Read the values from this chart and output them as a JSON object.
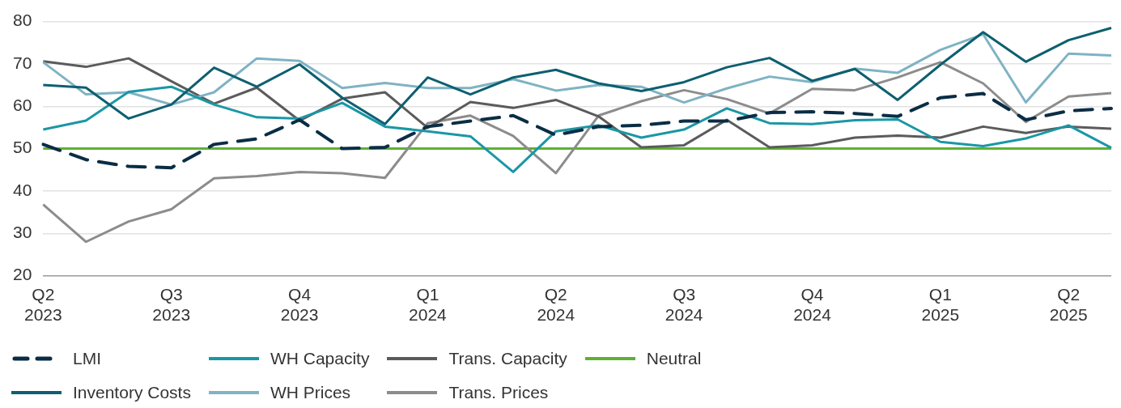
{
  "chart_data": {
    "type": "line",
    "categories": [
      "Q2 2023",
      null,
      null,
      "Q3 2023",
      null,
      null,
      "Q4 2023",
      null,
      null,
      "Q1 2024",
      null,
      null,
      "Q2 2024",
      null,
      null,
      "Q3 2024",
      null,
      null,
      "Q4 2024",
      null,
      null,
      "Q1 2025",
      null,
      null,
      "Q2 2025",
      null
    ],
    "series": [
      {
        "name": "LMI",
        "color": "#0a2d45",
        "line_style": "dashed",
        "values": [
          51,
          47.4,
          45.8,
          45.5,
          51,
          52.3,
          56.8,
          50,
          50.3,
          55.2,
          56.5,
          57.8,
          53.2,
          55.2,
          55.5,
          56.5,
          56.5,
          58.5,
          58.7,
          58.3,
          57.6,
          62,
          63,
          56.8,
          58.9,
          59.5
        ]
      },
      {
        "name": "Inventory Costs",
        "color": "#0d5f70",
        "values": [
          65,
          64.4,
          57.1,
          60.4,
          69.1,
          64.6,
          69.9,
          62,
          55.8,
          66.8,
          62.8,
          66.8,
          68.6,
          65.4,
          63.6,
          65.7,
          69.2,
          71.4,
          66,
          68.8,
          61.5,
          69.8,
          77.5,
          70.5,
          75.6,
          78.5
        ]
      },
      {
        "name": "WH Capacity",
        "color": "#1a97a5",
        "values": [
          54.5,
          56.6,
          63.4,
          64.6,
          60.4,
          57.4,
          57.1,
          60.8,
          55.2,
          54.1,
          52.9,
          44.5,
          54.1,
          55.5,
          52.6,
          54.5,
          59.5,
          56,
          55.8,
          56.7,
          56.9,
          51.6,
          50.6,
          52.4,
          55.5,
          50.2
        ]
      },
      {
        "name": "WH Prices",
        "color": "#7fb3c3",
        "values": [
          70.4,
          62.8,
          63.3,
          60.4,
          63.3,
          71.3,
          70.7,
          64.3,
          65.5,
          64.3,
          64.3,
          66.4,
          63.7,
          65,
          64.6,
          60.9,
          64.2,
          67,
          65.7,
          68.9,
          67.9,
          73.3,
          77,
          60.9,
          72.4,
          72
        ]
      },
      {
        "name": "Trans. Capacity",
        "color": "#5b5b5b",
        "values": [
          70.6,
          69.3,
          71.3,
          65.9,
          60.6,
          64.4,
          56.6,
          61.8,
          63.3,
          54.9,
          61,
          59.6,
          61.5,
          57.6,
          50.3,
          50.8,
          56.8,
          50.3,
          50.8,
          52.6,
          53.1,
          52.6,
          55.2,
          53.7,
          55.2,
          54.7
        ]
      },
      {
        "name": "Trans. Prices",
        "color": "#8c8c8c",
        "values": [
          36.8,
          28,
          32.8,
          35.7,
          43,
          43.5,
          44.5,
          44.2,
          43.1,
          56,
          57.8,
          53,
          44.2,
          57.8,
          61.2,
          63.8,
          61.7,
          58.3,
          64.1,
          63.8,
          66.8,
          70.4,
          65.4,
          56.3,
          62.3,
          63.1
        ]
      },
      {
        "name": "Neutral",
        "color": "#5db134",
        "values": [
          50,
          50,
          50,
          50,
          50,
          50,
          50,
          50,
          50,
          50,
          50,
          50,
          50,
          50,
          50,
          50,
          50,
          50,
          50,
          50,
          50,
          50,
          50,
          50,
          50,
          50
        ]
      }
    ],
    "ylim": [
      20,
      80
    ],
    "yticks": [
      20,
      30,
      40,
      50,
      60,
      70,
      80
    ],
    "grid": "y",
    "legend": "bottom",
    "marker": "none",
    "line_style": "solid"
  }
}
